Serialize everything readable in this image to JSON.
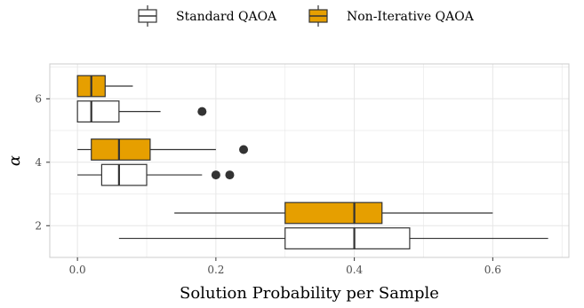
{
  "chart_data": {
    "type": "boxplot",
    "orientation": "horizontal",
    "xlabel": "Solution Probability per Sample",
    "ylabel": "α",
    "xlim": [
      -0.04,
      0.71
    ],
    "ylim": [
      1,
      7.1
    ],
    "x_ticks": [
      0.0,
      0.2,
      0.4,
      0.6
    ],
    "x_tick_labels": [
      "0.0",
      "0.2",
      "0.4",
      "0.6"
    ],
    "y_ticks": [
      2,
      4,
      6
    ],
    "y_tick_labels": [
      "2",
      "4",
      "6"
    ],
    "grid": true,
    "legend_position": "top",
    "series": [
      {
        "name": "Standard QAOA",
        "fill": "#ffffff",
        "boxes": [
          {
            "alpha": 2,
            "min": 0.06,
            "q1": 0.3,
            "median": 0.4,
            "q3": 0.48,
            "max": 0.68,
            "outliers": []
          },
          {
            "alpha": 4,
            "min": 0.0,
            "q1": 0.035,
            "median": 0.06,
            "q3": 0.1,
            "max": 0.18,
            "outliers": [
              0.2,
              0.22
            ]
          },
          {
            "alpha": 6,
            "min": 0.0,
            "q1": 0.0,
            "median": 0.02,
            "q3": 0.06,
            "max": 0.12,
            "outliers": [
              0.18
            ]
          }
        ]
      },
      {
        "name": "Non-Iterative QAOA",
        "fill": "#E69F00",
        "boxes": [
          {
            "alpha": 2,
            "min": 0.14,
            "q1": 0.3,
            "median": 0.4,
            "q3": 0.44,
            "max": 0.6,
            "outliers": []
          },
          {
            "alpha": 4,
            "min": 0.0,
            "q1": 0.02,
            "median": 0.06,
            "q3": 0.105,
            "max": 0.2,
            "outliers": [
              0.24
            ]
          },
          {
            "alpha": 6,
            "min": 0.0,
            "q1": 0.0,
            "median": 0.02,
            "q3": 0.04,
            "max": 0.08,
            "outliers": []
          }
        ]
      }
    ]
  },
  "colors": {
    "standard_fill": "#ffffff",
    "non_iterative_fill": "#E69F00",
    "stroke": "#333333",
    "grid": "#e6e6e6",
    "panel_border": "#cccccc",
    "outlier": "#333333"
  }
}
